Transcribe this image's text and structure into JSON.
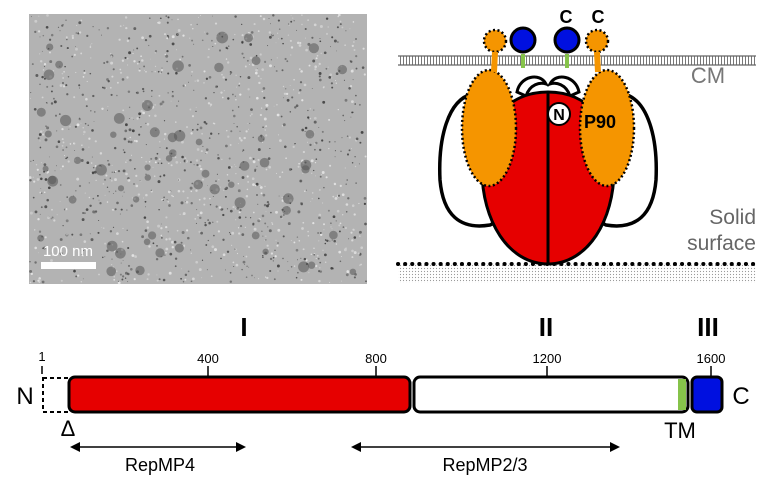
{
  "micrograph": {
    "scale_bar_label": "100 nm"
  },
  "model": {
    "membrane_label": "CM",
    "surface_label_line1": "Solid",
    "surface_label_line2": "surface",
    "n_terminus_label": "N",
    "p90_label": "P90",
    "c_terminus_left": "C",
    "c_terminus_right": "C"
  },
  "domain_map": {
    "region_labels": [
      "I",
      "II",
      "III"
    ],
    "tick_labels": [
      "1",
      "400",
      "800",
      "1200",
      "1600"
    ],
    "n_label": "N",
    "c_label": "C",
    "delta_label": "Δ",
    "tm_label": "TM",
    "fragments": [
      "RepMP4",
      "RepMP2/3"
    ]
  },
  "colors": {
    "region_I": "#e60000",
    "region_II": "#ffffff",
    "region_III": "#0010e0",
    "tm": "#86c34a",
    "leg": "#f59500"
  }
}
